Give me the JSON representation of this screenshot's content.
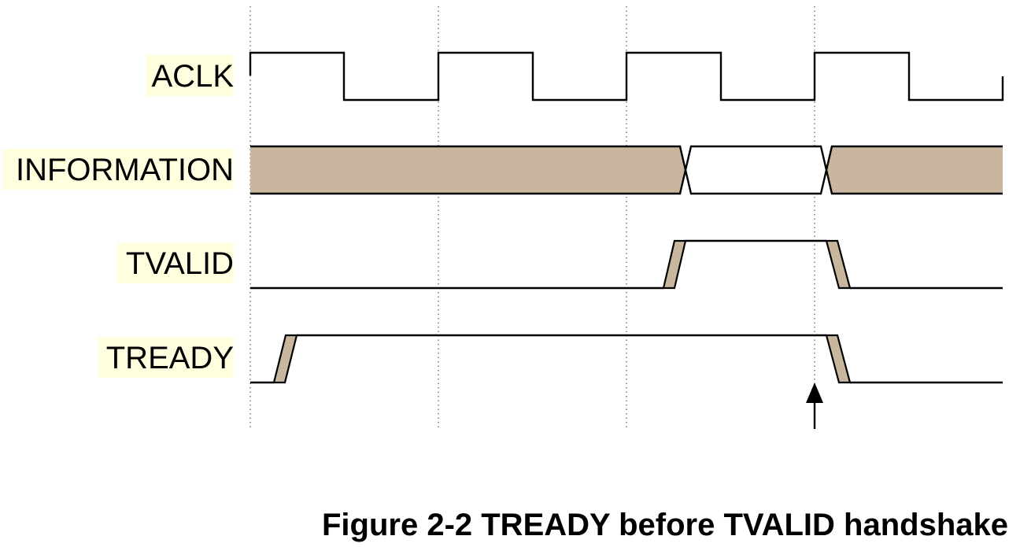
{
  "signals": [
    {
      "id": "aclk",
      "label": "ACLK"
    },
    {
      "id": "information",
      "label": "INFORMATION"
    },
    {
      "id": "tvalid",
      "label": "TVALID"
    },
    {
      "id": "tready",
      "label": "TREADY"
    }
  ],
  "caption": "Figure 2-2 TREADY before TVALID handshake",
  "colors": {
    "label_highlight": "#ffffe0",
    "undefined_hatch": "#c9b69e",
    "wave": "#000000",
    "gridline": "#555555"
  },
  "clock_edges": 4,
  "handshake_marker": "up-arrow-icon"
}
